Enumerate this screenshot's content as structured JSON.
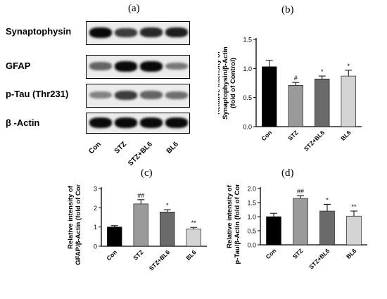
{
  "panels": {
    "a": "(a)",
    "b": "(b)",
    "c": "(c)",
    "d": "(d)"
  },
  "blot": {
    "proteins": [
      "Synaptophysin",
      "GFAP",
      "p-Tau (Thr231)",
      "β -Actin"
    ],
    "lanes": [
      "Con",
      "STZ",
      "STZ+BL6",
      "BL6"
    ],
    "band_intensity": [
      [
        1.0,
        0.75,
        0.85,
        0.9
      ],
      [
        0.55,
        1.0,
        1.0,
        0.45
      ],
      [
        0.4,
        0.75,
        0.55,
        0.5
      ],
      [
        1.0,
        1.0,
        1.0,
        1.0
      ]
    ]
  },
  "chart_data": [
    {
      "id": "b",
      "type": "bar",
      "categories": [
        "Con",
        "STZ",
        "STZ+BL6",
        "BL6"
      ],
      "values": [
        1.03,
        0.71,
        0.82,
        0.87
      ],
      "errors": [
        0.11,
        0.05,
        0.05,
        0.1
      ],
      "significance": [
        "",
        "#",
        "*",
        "*"
      ],
      "colors": [
        "#000000",
        "#9a9a9a",
        "#6a6a6a",
        "#d4d4d4"
      ],
      "ylabel": "Relative intensity of Synaptophysin/β-Actin (fold of Control)",
      "ylabel_lines": [
        "Relative intensity of",
        "Synaptophysin/β-Actin",
        "(fold of Control)"
      ],
      "ylim": [
        0,
        1.5
      ],
      "ticks": [
        0.0,
        0.5,
        1.0,
        1.5
      ],
      "tick_labels": [
        "0.0",
        "0.5",
        "1.0",
        "1.5"
      ]
    },
    {
      "id": "c",
      "type": "bar",
      "categories": [
        "Con",
        "STZ",
        "STZ+BL6",
        "BL6"
      ],
      "values": [
        1.0,
        2.2,
        1.78,
        0.9
      ],
      "errors": [
        0.07,
        0.22,
        0.12,
        0.08
      ],
      "significance": [
        "",
        "##",
        "*",
        "**"
      ],
      "colors": [
        "#000000",
        "#9a9a9a",
        "#6a6a6a",
        "#d4d4d4"
      ],
      "ylabel": "Relative intensity of GFAP/β-Actin (fold of Control)",
      "ylabel_lines": [
        "Relative intensity of",
        "GFAP/β-Actin (fold of Control)"
      ],
      "ylim": [
        0,
        3
      ],
      "ticks": [
        0,
        1,
        2,
        3
      ],
      "tick_labels": [
        "0",
        "1",
        "2",
        "3"
      ]
    },
    {
      "id": "d",
      "type": "bar",
      "categories": [
        "Con",
        "STZ",
        "STZ+BL6",
        "BL6"
      ],
      "values": [
        1.0,
        1.65,
        1.2,
        1.02
      ],
      "errors": [
        0.12,
        0.1,
        0.24,
        0.18
      ],
      "significance": [
        "",
        "##",
        "*",
        "**"
      ],
      "colors": [
        "#000000",
        "#9a9a9a",
        "#6a6a6a",
        "#d4d4d4"
      ],
      "ylabel": "Relative intensity of p-Tau/β-Actin (fold of Control)",
      "ylabel_lines": [
        "Relative intensity of",
        "p-Tau/β-Actin (fold of Control)"
      ],
      "ylim": [
        0,
        2.0
      ],
      "ticks": [
        0.0,
        0.5,
        1.0,
        1.5,
        2.0
      ],
      "tick_labels": [
        "0.0",
        "0.5",
        "1.0",
        "1.5",
        "2.0"
      ]
    }
  ]
}
